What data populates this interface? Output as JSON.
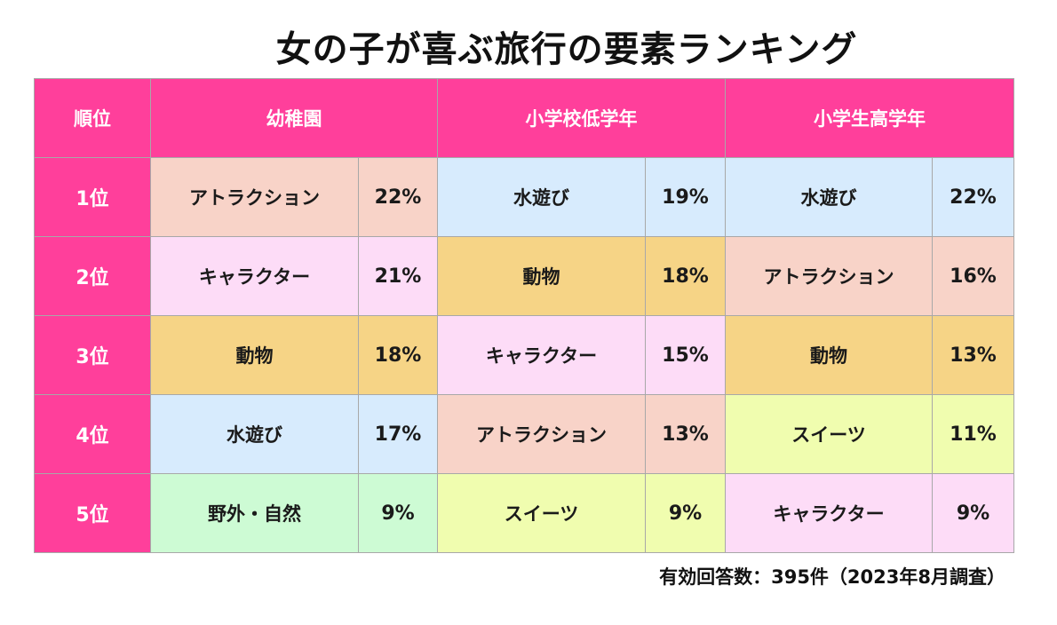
{
  "title": "女の子が喜ぶ旅行の要素ランキング",
  "footnote": "有効回答数：395件（2023年8月調査）",
  "colors": {
    "header": "#ff3f9b",
    "アトラクション": "#f8d3c8",
    "キャラクター": "#fddcf7",
    "動物": "#f6d486",
    "水遊び": "#d7ebfd",
    "野外・自然": "#cdfbd4",
    "スイーツ": "#f0fdaf"
  },
  "chart_data": {
    "type": "table",
    "title": "女の子が喜ぶ旅行の要素ランキング",
    "rank_header": "順位",
    "groups": [
      {
        "name": "幼稚園",
        "rows": [
          {
            "rank": "1位",
            "item": "アトラクション",
            "value": 22
          },
          {
            "rank": "2位",
            "item": "キャラクター",
            "value": 21
          },
          {
            "rank": "3位",
            "item": "動物",
            "value": 18
          },
          {
            "rank": "4位",
            "item": "水遊び",
            "value": 17
          },
          {
            "rank": "5位",
            "item": "野外・自然",
            "value": 9
          }
        ]
      },
      {
        "name": "小学校低学年",
        "rows": [
          {
            "rank": "1位",
            "item": "水遊び",
            "value": 19
          },
          {
            "rank": "2位",
            "item": "動物",
            "value": 18
          },
          {
            "rank": "3位",
            "item": "キャラクター",
            "value": 15
          },
          {
            "rank": "4位",
            "item": "アトラクション",
            "value": 13
          },
          {
            "rank": "5位",
            "item": "スイーツ",
            "value": 9
          }
        ]
      },
      {
        "name": "小学生高学年",
        "rows": [
          {
            "rank": "1位",
            "item": "水遊び",
            "value": 22
          },
          {
            "rank": "2位",
            "item": "アトラクション",
            "value": 16
          },
          {
            "rank": "3位",
            "item": "動物",
            "value": 13
          },
          {
            "rank": "4位",
            "item": "スイーツ",
            "value": 11
          },
          {
            "rank": "5位",
            "item": "キャラクター",
            "value": 9
          }
        ]
      }
    ],
    "unit": "%",
    "ranks": [
      "1位",
      "2位",
      "3位",
      "4位",
      "5位"
    ]
  }
}
